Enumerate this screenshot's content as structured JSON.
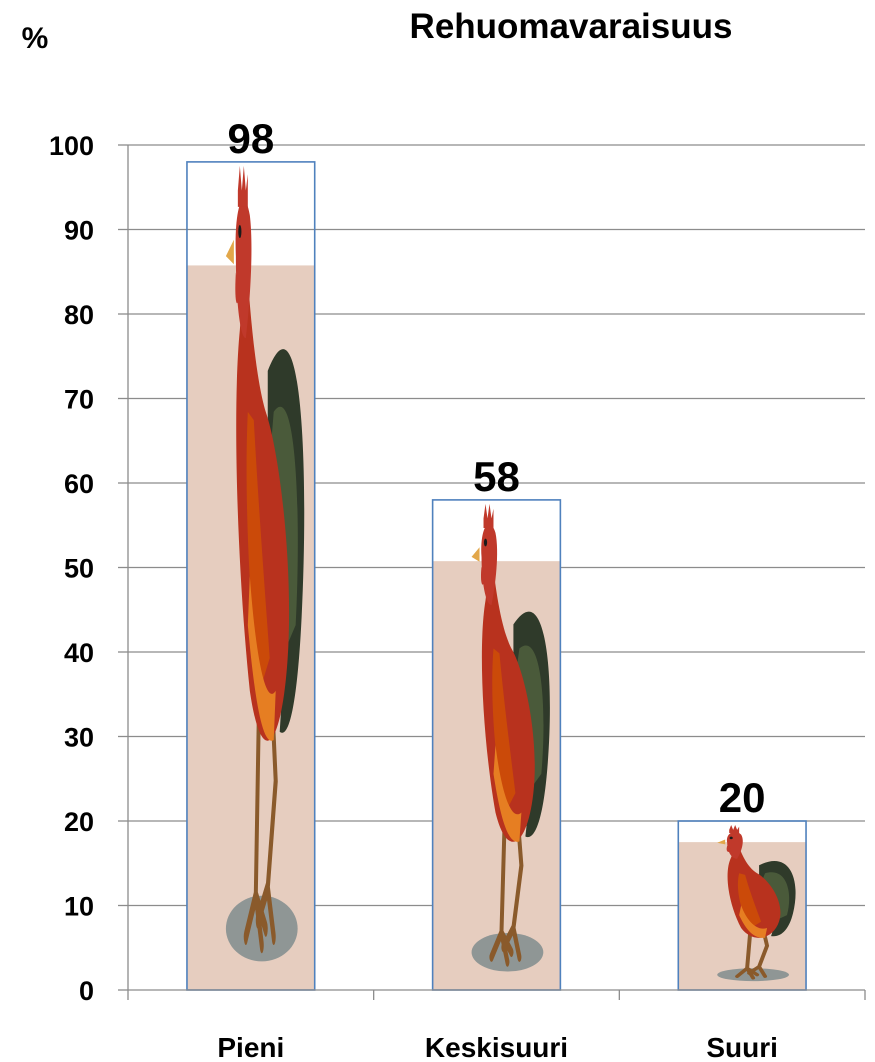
{
  "chart_data": {
    "type": "bar",
    "title": "Rehuomavaraisuus",
    "ylabel": "%",
    "xlabel": "",
    "categories": [
      "Pieni",
      "Keskisuuri",
      "Suuri"
    ],
    "values": [
      98,
      58,
      20
    ],
    "ylim": [
      0,
      100
    ],
    "yticks": [
      0,
      10,
      20,
      30,
      40,
      50,
      60,
      70,
      80,
      90,
      100
    ],
    "grid": true,
    "legend": "none",
    "bar_fill_color": "#e6cdbf",
    "bar_outline_color": "#4f81bd",
    "bar_icon": "rooster-icon"
  }
}
